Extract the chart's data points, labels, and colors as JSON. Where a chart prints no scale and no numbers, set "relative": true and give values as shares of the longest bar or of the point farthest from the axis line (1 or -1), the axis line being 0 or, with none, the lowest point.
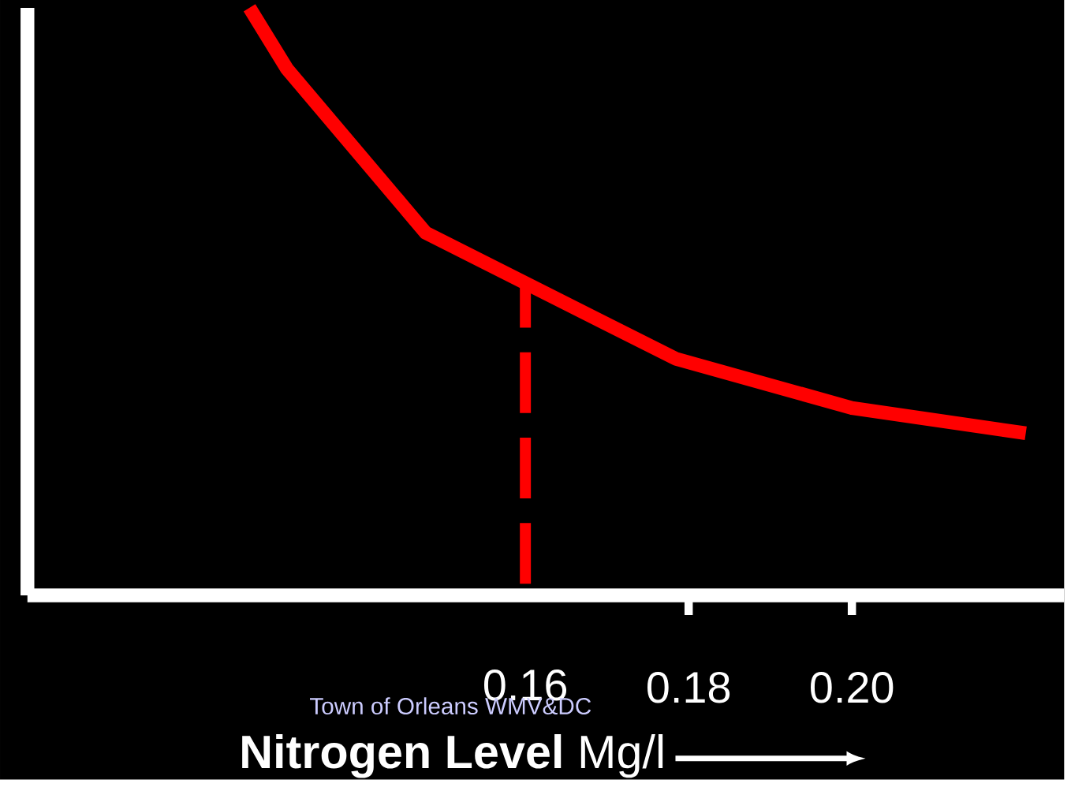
{
  "chart_data": {
    "type": "line",
    "relative": true,
    "xlabel": "**Nitrogen Level** Mg/l",
    "annotations": [
      "Town of Orleans WMV&DC"
    ],
    "xlim": [
      0.099,
      0.226
    ],
    "xticks": [
      0.18,
      {
        "value": 0.2,
        "label": "0.20"
      }
    ],
    "marker": "none",
    "line_style": "solid",
    "grid": false,
    "ref_lines": [
      {
        "axis": "x",
        "value": 0.16,
        "label": "0.16",
        "color": "#ff0000",
        "line_style": "dashed"
      }
    ],
    "series": [
      {
        "color": "#ff0000",
        "x": [
          0.1262,
          0.1308,
          0.1478,
          0.1784,
          0.2,
          0.2213
        ],
        "values": [
          1,
          0.896,
          0.617,
          0.403,
          0.319,
          0.276
        ]
      }
    ]
  }
}
